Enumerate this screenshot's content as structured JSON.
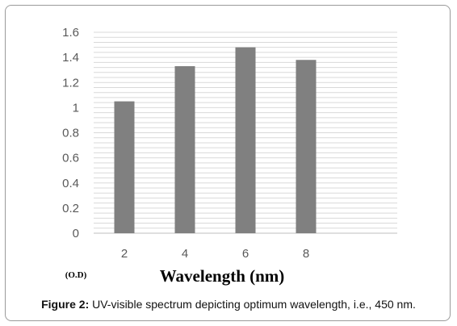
{
  "chart_data": {
    "type": "bar",
    "categories": [
      "2",
      "4",
      "6",
      "8"
    ],
    "values": [
      1.05,
      1.33,
      1.48,
      1.38
    ],
    "ylim": [
      0,
      1.6
    ],
    "yticks": [
      "0",
      "0.2",
      "0.4",
      "0.6",
      "0.8",
      "1",
      "1.2",
      "1.4",
      "1.6"
    ],
    "xlabel": "Wavelength (nm)",
    "ylabel": "(O.D)",
    "grid": true,
    "bar_color": "#808080",
    "grid_color": "#d9d9d9"
  },
  "caption": {
    "label": "Figure 2:",
    "text": " UV-visible spectrum depicting optimum wavelength, i.e., 450 nm."
  }
}
